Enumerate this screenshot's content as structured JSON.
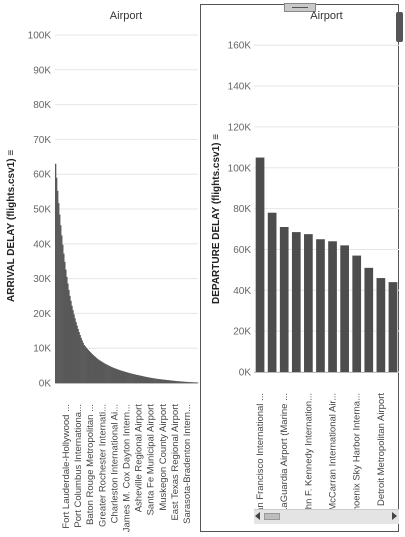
{
  "chart_data": [
    {
      "type": "bar",
      "title": "Airport",
      "ylabel": "ARRIVAL DELAY (flights.csv1)",
      "xlabel": "",
      "ylim": [
        0,
        100000
      ],
      "yticks": [
        "0K",
        "10K",
        "20K",
        "30K",
        "40K",
        "50K",
        "60K",
        "70K",
        "80K",
        "90K",
        "100K"
      ],
      "grid": "horizontal",
      "color": "#595959",
      "categories": [
        "Fort Lauderdale-Hollywood ...",
        "Port Columbus Internationa...",
        "Baton Rouge Metropolitan ...",
        "Greater Rochester Internati...",
        "Charleston International Ai...",
        "James M. Cox Dayton Intern...",
        "Asheville Regional Airport",
        "Santa Fe Municipal Airport",
        "Muskegon County Airport",
        "East Texas Regional Airport",
        "Sarasota-Bradenton Intern..."
      ],
      "values": [
        63000,
        25200,
        11000,
        6800,
        4500,
        3100,
        2100,
        1300,
        800,
        400,
        150
      ]
    },
    {
      "type": "bar",
      "title": "Airport",
      "ylabel": "DEPARTURE DELAY (flights.csv1)",
      "xlabel": "",
      "ylim": [
        0,
        165000
      ],
      "yticks": [
        "0K",
        "20K",
        "40K",
        "60K",
        "80K",
        "100K",
        "120K",
        "140K",
        "160K"
      ],
      "grid": "horizontal",
      "color": "#4d4d4d",
      "categories": [
        "San Francisco International ...",
        "",
        "LaGuardia Airport (Marine ...",
        "",
        "John F. Kennedy Internation...",
        "",
        "McCarran International Air...",
        "",
        "Phoenix Sky Harbor Interna...",
        "",
        "Detroit Metropolitan Airport",
        ""
      ],
      "values": [
        105000,
        78000,
        71000,
        68500,
        67500,
        65000,
        64000,
        62000,
        57000,
        51000,
        46000,
        44000
      ]
    }
  ]
}
